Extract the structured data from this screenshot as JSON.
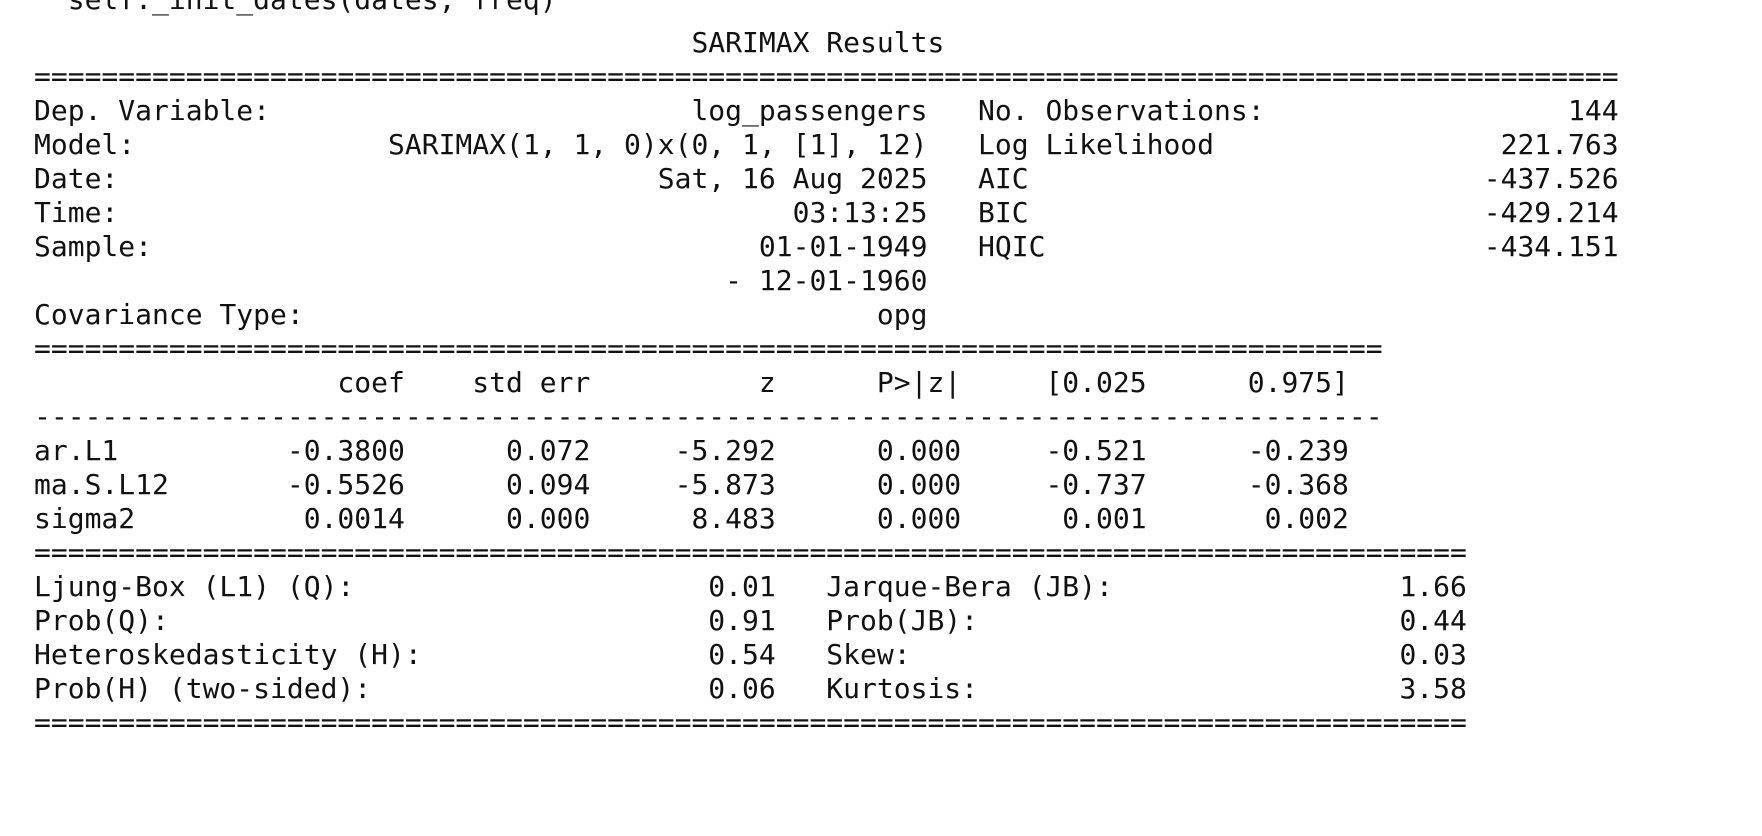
{
  "warning_tail": "  self._init_dates(dates, freq)",
  "title": "SARIMAX Results",
  "separators": {
    "wide": "==============================================================================================",
    "coef_eq": "================================================================================",
    "coef_dash": "--------------------------------------------------------------------------------",
    "diag_eq": "=====================================================================================",
    "diag_end": "====================================================================================="
  },
  "header_rows": [
    {
      "label": "Dep. Variable:",
      "value": "log_passengers",
      "stat_label": "No. Observations:",
      "stat_value": "144"
    },
    {
      "label": "Model:",
      "value": "SARIMAX(1, 1, 0)x(0, 1, [1], 12)",
      "stat_label": "Log Likelihood",
      "stat_value": "221.763"
    },
    {
      "label": "Date:",
      "value": "Sat, 16 Aug 2025",
      "stat_label": "AIC",
      "stat_value": "-437.526"
    },
    {
      "label": "Time:",
      "value": "03:13:25",
      "stat_label": "BIC",
      "stat_value": "-429.214"
    },
    {
      "label": "Sample:",
      "value": "01-01-1949",
      "stat_label": "HQIC",
      "stat_value": "-434.151"
    },
    {
      "label": "",
      "value": "- 12-01-1960",
      "stat_label": "",
      "stat_value": ""
    },
    {
      "label": "Covariance Type:",
      "value": "opg",
      "stat_label": "",
      "stat_value": ""
    }
  ],
  "coef_table": {
    "columns": [
      "coef",
      "std err",
      "z",
      "P>|z|",
      "[0.025",
      "0.975]"
    ],
    "rows": [
      {
        "name": "ar.L1",
        "values": [
          "-0.3800",
          "0.072",
          "-5.292",
          "0.000",
          "-0.521",
          "-0.239"
        ]
      },
      {
        "name": "ma.S.L12",
        "values": [
          "-0.5526",
          "0.094",
          "-5.873",
          "0.000",
          "-0.737",
          "-0.368"
        ]
      },
      {
        "name": "sigma2",
        "values": [
          "0.0014",
          "0.000",
          "8.483",
          "0.000",
          "0.001",
          "0.002"
        ]
      }
    ]
  },
  "diagnostics": [
    {
      "label": "Ljung-Box (L1) (Q):",
      "value": "0.01",
      "label2": "Jarque-Bera (JB):",
      "value2": "1.66"
    },
    {
      "label": "Prob(Q):",
      "value": "0.91",
      "label2": "Prob(JB):",
      "value2": "0.44"
    },
    {
      "label": "Heteroskedasticity (H):",
      "value": "0.54",
      "label2": "Skew:",
      "value2": "0.03"
    },
    {
      "label": "Prob(H) (two-sided):",
      "value": "0.06",
      "label2": "Kurtosis:",
      "value2": "3.58"
    }
  ]
}
